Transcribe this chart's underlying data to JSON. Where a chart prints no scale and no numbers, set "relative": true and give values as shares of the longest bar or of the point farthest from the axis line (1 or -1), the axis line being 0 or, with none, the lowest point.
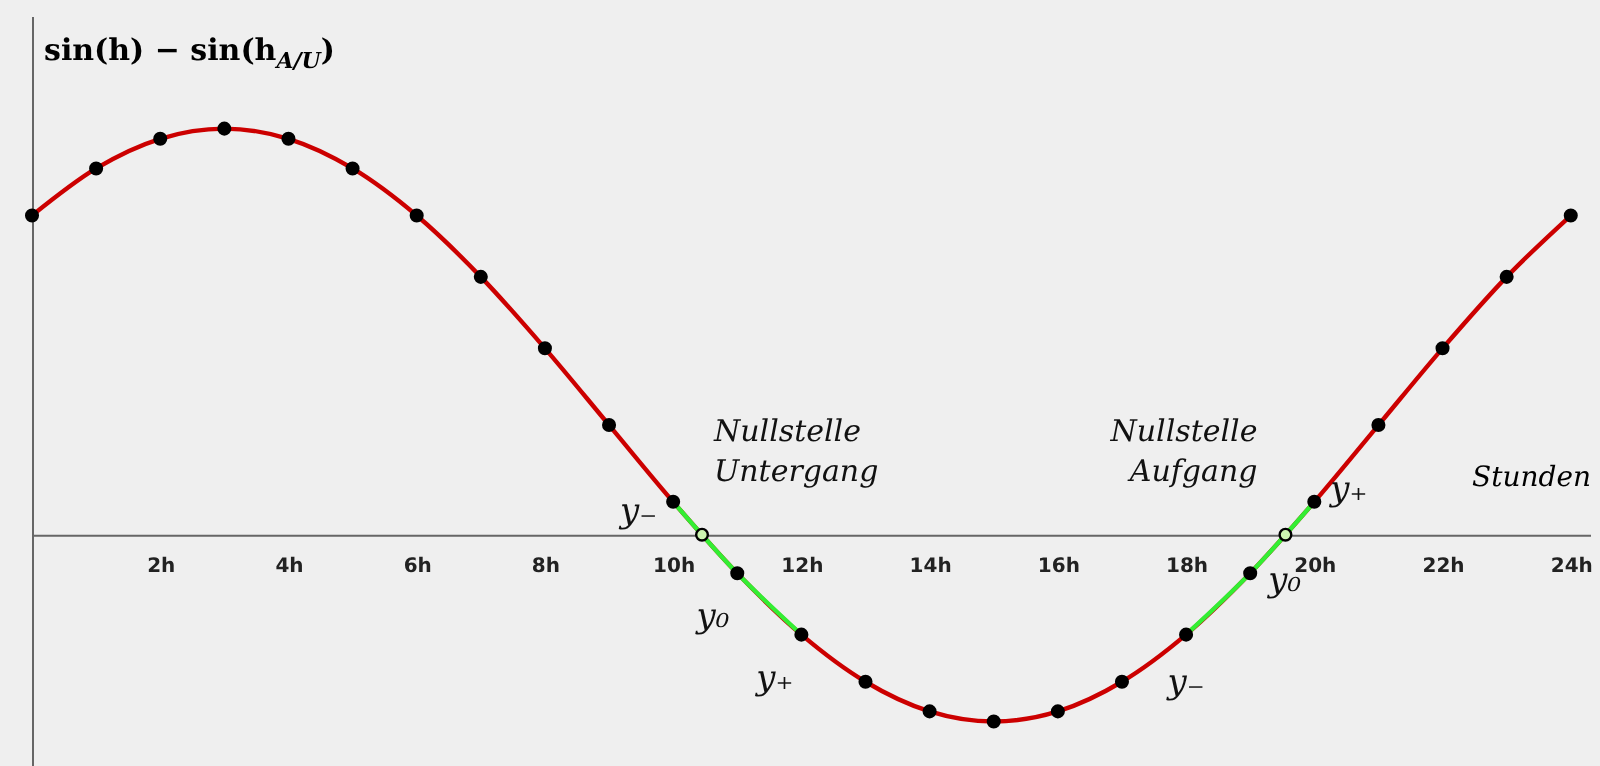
{
  "chart_data": {
    "type": "line",
    "relative": true,
    "ylabel": "sin(h) − sin(h$_{A/U}$)",
    "xlabel": "Stunden",
    "marker": "circle",
    "x": [
      0,
      1,
      2,
      3,
      4,
      5,
      6,
      7,
      8,
      9,
      10,
      11,
      12,
      13,
      14,
      15,
      16,
      17,
      18,
      19,
      20,
      21,
      22,
      23,
      24
    ],
    "xlim": [
      0,
      24.3
    ],
    "xticks": [
      {
        "value": 2,
        "label": "2h"
      },
      {
        "value": 4,
        "label": "4h"
      },
      {
        "value": 6,
        "label": "6h"
      },
      {
        "value": 8,
        "label": "8h"
      },
      {
        "value": 10,
        "label": "10h"
      },
      {
        "value": 12,
        "label": "12h"
      },
      {
        "value": 14,
        "label": "14h"
      },
      {
        "value": 16,
        "label": "16h"
      },
      {
        "value": 18,
        "label": "18h"
      },
      {
        "value": 20,
        "label": "20h"
      },
      {
        "value": 22,
        "label": "22h"
      },
      {
        "value": 24,
        "label": "24h"
      }
    ],
    "series": [
      {
        "type": "line",
        "color": "#cc0000",
        "marker": "none",
        "values": [
          0.786,
          0.902,
          0.975,
          1,
          0.975,
          0.902,
          0.786,
          0.635,
          0.459,
          0.27,
          0.081,
          -0.095,
          -0.246,
          -0.362,
          -0.435,
          -0.46,
          -0.435,
          -0.362,
          -0.246,
          -0.095,
          0.081,
          0.27,
          0.459,
          0.635,
          0.786
        ]
      },
      {
        "type": "line",
        "color": "#33ee33",
        "marker": "none",
        "x": [
          10,
          11,
          12
        ],
        "values": [
          0.081,
          -0.095,
          -0.246
        ]
      },
      {
        "type": "line",
        "color": "#33ee33",
        "marker": "none",
        "x": [
          18,
          19,
          20
        ],
        "values": [
          -0.246,
          -0.095,
          0.081
        ]
      },
      {
        "type": "scatter",
        "color": "#000000",
        "values": [
          0.786,
          0.902,
          0.975,
          1,
          0.975,
          0.902,
          0.786,
          0.635,
          0.459,
          0.27,
          0.081,
          -0.095,
          -0.246,
          -0.362,
          -0.435,
          -0.46,
          -0.435,
          -0.362,
          -0.246,
          -0.095,
          0.081,
          0.27,
          0.459,
          0.635,
          0.786
        ]
      },
      {
        "type": "scatter",
        "color": "#ccf5b0",
        "x": [
          10.45,
          19.55
        ],
        "values": [
          0,
          0
        ]
      }
    ],
    "annotations": [
      {
        "text": "Nullstelle Untergang",
        "x": 10.45,
        "y": 0
      },
      {
        "text": "Nullstelle Aufgang",
        "x": 19.55,
        "y": 0
      },
      {
        "text": "y₋",
        "x": 10,
        "y": 0.081
      },
      {
        "text": "y₀",
        "x": 11,
        "y": -0.095
      },
      {
        "text": "y₊",
        "x": 12,
        "y": -0.246
      },
      {
        "text": "y₋",
        "x": 18,
        "y": -0.246
      },
      {
        "text": "y₀",
        "x": 19,
        "y": -0.095
      },
      {
        "text": "y₊",
        "x": 20,
        "y": 0.081
      }
    ]
  }
}
